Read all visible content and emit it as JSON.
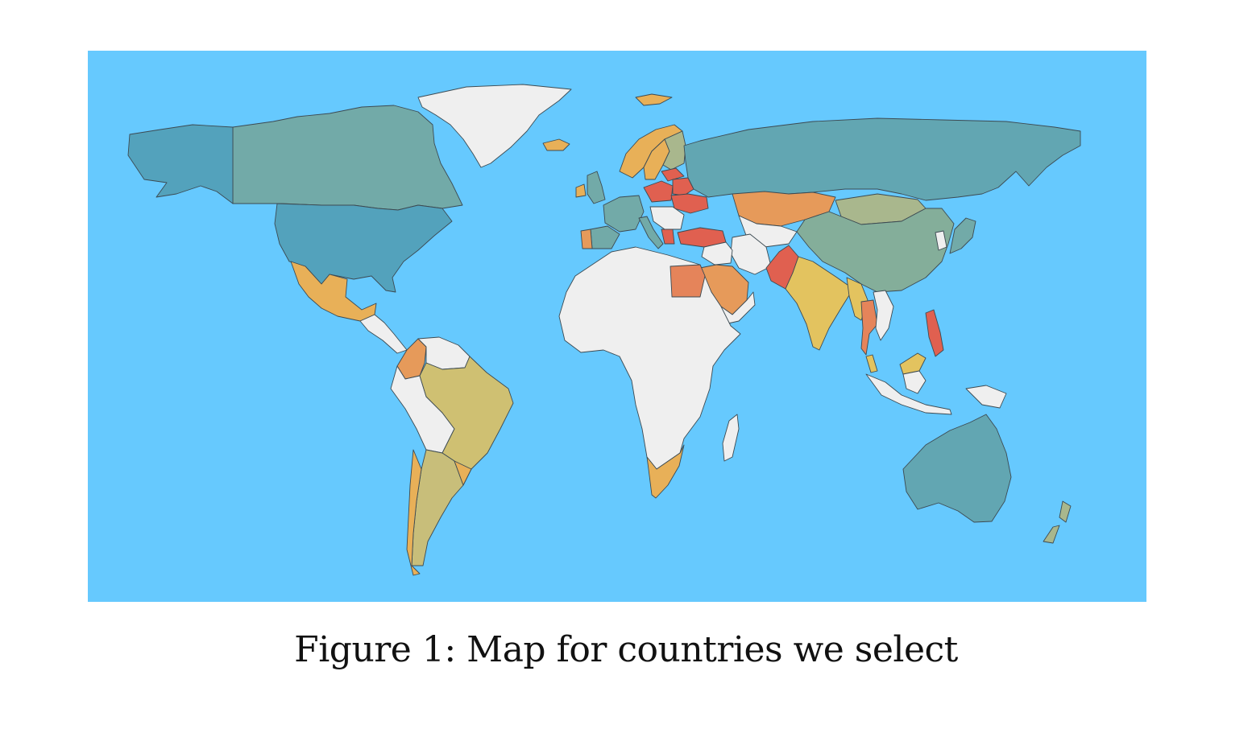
{
  "figure": {
    "caption": "Figure 1: Map for countries we select"
  },
  "map": {
    "ocean_color": "#66c9fe",
    "unselected_color": "#efefef",
    "border_color": "#3c4a52",
    "palette": {
      "teal_dark": "#53a2bc",
      "teal": "#62a6b2",
      "teal_grey": "#72aaa8",
      "sage": "#84ae9a",
      "olive": "#a9b78d",
      "khaki": "#c8be7a",
      "mustard": "#cfc072",
      "yellow": "#e3c35f",
      "light_orange": "#e8b058",
      "orange": "#e69a5a",
      "dark_orange": "#e5845a",
      "red": "#e06050"
    },
    "regions": [
      {
        "name": "greenland",
        "color": "#efefef"
      },
      {
        "name": "canada",
        "color": "#72aaa8"
      },
      {
        "name": "alaska",
        "color": "#53a2bc"
      },
      {
        "name": "usa",
        "color": "#53a2bc"
      },
      {
        "name": "mexico",
        "color": "#e8b058"
      },
      {
        "name": "central-america",
        "color": "#efefef"
      },
      {
        "name": "colombia",
        "color": "#e69a5a"
      },
      {
        "name": "venezuela-guianas",
        "color": "#efefef"
      },
      {
        "name": "brazil",
        "color": "#cfc072"
      },
      {
        "name": "peru-bolivia",
        "color": "#efefef"
      },
      {
        "name": "chile",
        "color": "#e8b058"
      },
      {
        "name": "argentina",
        "color": "#c8be7a"
      },
      {
        "name": "uruguay",
        "color": "#e8b058"
      },
      {
        "name": "iceland",
        "color": "#e8b058"
      },
      {
        "name": "svalbard",
        "color": "#e8b058"
      },
      {
        "name": "norway",
        "color": "#e8b058"
      },
      {
        "name": "sweden",
        "color": "#e8b058"
      },
      {
        "name": "finland",
        "color": "#a9b78d"
      },
      {
        "name": "uk",
        "color": "#72aaa8"
      },
      {
        "name": "ireland",
        "color": "#e8b058"
      },
      {
        "name": "france-western-europe",
        "color": "#72aaa8"
      },
      {
        "name": "spain",
        "color": "#72aaa8"
      },
      {
        "name": "portugal",
        "color": "#e69a5a"
      },
      {
        "name": "italy",
        "color": "#72aaa8"
      },
      {
        "name": "baltics",
        "color": "#e06050"
      },
      {
        "name": "poland",
        "color": "#e06050"
      },
      {
        "name": "belarus",
        "color": "#e06050"
      },
      {
        "name": "ukraine",
        "color": "#e06050"
      },
      {
        "name": "balkans",
        "color": "#efefef"
      },
      {
        "name": "greece",
        "color": "#e06050"
      },
      {
        "name": "turkey",
        "color": "#e06050"
      },
      {
        "name": "russia",
        "color": "#62a6b2"
      },
      {
        "name": "kazakhstan",
        "color": "#e69a5a"
      },
      {
        "name": "central-asia",
        "color": "#efefef"
      },
      {
        "name": "mongolia",
        "color": "#a9b78d"
      },
      {
        "name": "china",
        "color": "#84ae9a"
      },
      {
        "name": "korea",
        "color": "#efefef"
      },
      {
        "name": "japan",
        "color": "#72aaa8"
      },
      {
        "name": "iran",
        "color": "#efefef"
      },
      {
        "name": "iraq-syria",
        "color": "#efefef"
      },
      {
        "name": "saudi-arabia",
        "color": "#e69a5a"
      },
      {
        "name": "yemen-oman",
        "color": "#efefef"
      },
      {
        "name": "pakistan",
        "color": "#e06050"
      },
      {
        "name": "india",
        "color": "#e3c35f"
      },
      {
        "name": "myanmar",
        "color": "#e3c35f"
      },
      {
        "name": "thailand",
        "color": "#e5845a"
      },
      {
        "name": "vietnam-laos",
        "color": "#efefef"
      },
      {
        "name": "philippines",
        "color": "#e06050"
      },
      {
        "name": "malaysia",
        "color": "#e3c35f"
      },
      {
        "name": "indonesia",
        "color": "#efefef"
      },
      {
        "name": "papua",
        "color": "#efefef"
      },
      {
        "name": "australia",
        "color": "#62a6b2"
      },
      {
        "name": "new-zealand",
        "color": "#a9b78d"
      },
      {
        "name": "africa",
        "color": "#efefef"
      },
      {
        "name": "egypt",
        "color": "#e5845a"
      },
      {
        "name": "south-africa",
        "color": "#e8b058"
      },
      {
        "name": "madagascar",
        "color": "#efefef"
      }
    ]
  }
}
